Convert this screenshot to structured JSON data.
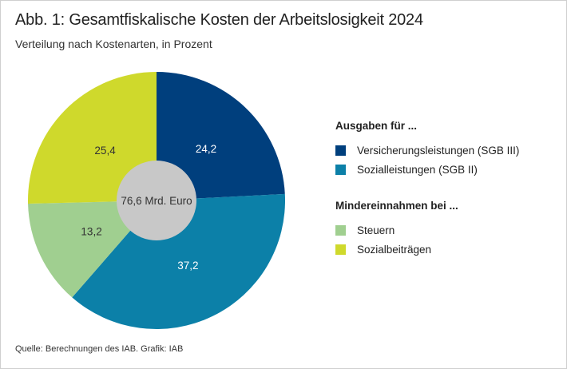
{
  "title": "Abb. 1: Gesamtfiskalische Kosten der Arbeitslosigkeit 2024",
  "subtitle": "Verteilung nach Kostenarten, in Prozent",
  "source": "Quelle: Berechnungen des IAB. Grafik: IAB",
  "legend": {
    "group1": "Ausgaben für ...",
    "group2": "Mindereinnahmen bei ..."
  },
  "chart_data": {
    "type": "pie",
    "donut": true,
    "center_label": "76,6 Mrd. Euro",
    "legend_placement": "right",
    "slices": [
      {
        "name": "Versicherungsleistungen (SGB III)",
        "value": 24.2,
        "label": "24,2",
        "color": "#003f7d",
        "label_color": "#ffffff",
        "group": "group1"
      },
      {
        "name": "Sozialleistungen (SGB II)",
        "value": 37.2,
        "label": "37,2",
        "color": "#0c80a8",
        "label_color": "#ffffff",
        "group": "group1"
      },
      {
        "name": "Steuern",
        "value": 13.2,
        "label": "13,2",
        "color": "#a0cf90",
        "label_color": "#333333",
        "group": "group2"
      },
      {
        "name": "Sozialbeiträgen",
        "value": 25.4,
        "label": "25,4",
        "color": "#cfd92c",
        "label_color": "#333333",
        "group": "group2"
      }
    ]
  }
}
